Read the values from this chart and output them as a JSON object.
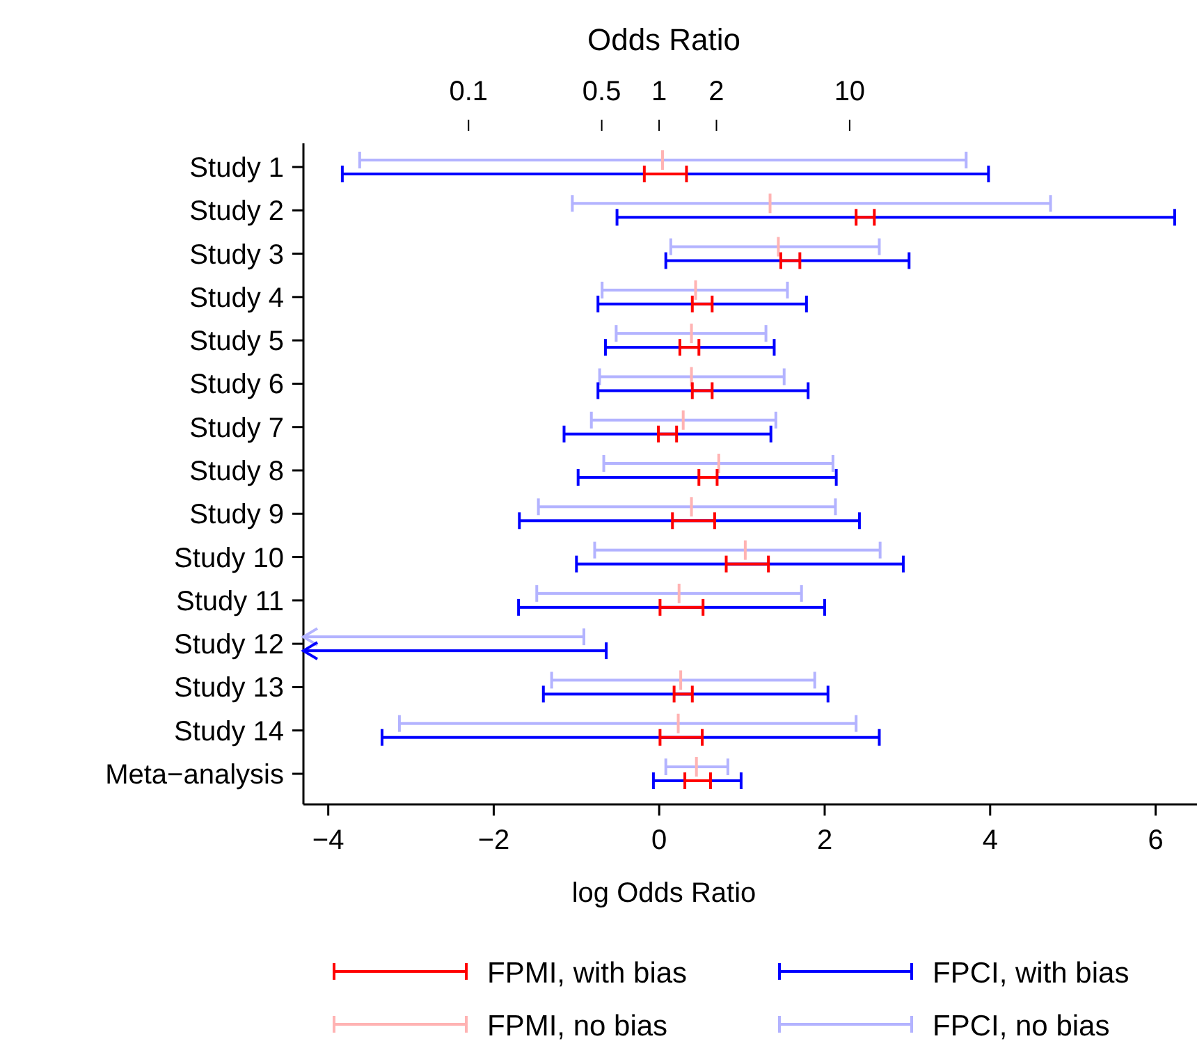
{
  "chart_data": {
    "type": "bar",
    "orientation": "horizontal",
    "xlabel": "log Odds Ratio",
    "x2label": "Odds Ratio",
    "categories": [
      "Study 1",
      "Study 2",
      "Study 3",
      "Study 4",
      "Study 5",
      "Study 6",
      "Study 7",
      "Study 8",
      "Study 9",
      "Study 10",
      "Study 11",
      "Study 12",
      "Study 13",
      "Study 14",
      "Meta−analysis"
    ],
    "series": [
      {
        "name": "FPMI, with bias",
        "color": "#ff0000",
        "base": [
          -0.18,
          2.38,
          1.47,
          0.4,
          0.25,
          0.4,
          -0.01,
          0.48,
          0.16,
          0.81,
          0.01,
          null,
          0.18,
          0.01,
          0.31
        ],
        "values": [
          0.51,
          0.22,
          0.23,
          0.24,
          0.23,
          0.24,
          0.22,
          0.22,
          0.51,
          0.51,
          0.52,
          null,
          0.22,
          0.51,
          0.31
        ]
      },
      {
        "name": "FPCI, with bias",
        "color": "#0000ff",
        "base": [
          -3.83,
          -0.51,
          0.08,
          -0.74,
          -0.65,
          -0.74,
          -1.15,
          -0.98,
          -1.69,
          -1.0,
          -1.7,
          -4.3,
          -1.4,
          -3.35,
          -0.07
        ],
        "values": [
          7.81,
          6.74,
          2.94,
          2.52,
          2.04,
          2.54,
          2.5,
          3.12,
          4.11,
          3.95,
          3.7,
          3.66,
          3.44,
          6.01,
          1.06
        ]
      },
      {
        "name": "FPMI, no bias",
        "color": "#ffb3b3",
        "base": [
          0.04,
          1.34,
          1.44,
          0.44,
          0.39,
          0.39,
          0.29,
          0.72,
          0.39,
          1.04,
          0.24,
          null,
          0.26,
          0.23,
          0.45
        ],
        "values": [
          0,
          0,
          0,
          0,
          0,
          0,
          0,
          0,
          0,
          0,
          0,
          null,
          0,
          0,
          0
        ]
      },
      {
        "name": "FPCI, no bias",
        "color": "#b3b3ff",
        "base": [
          -3.62,
          -1.05,
          0.14,
          -0.69,
          -0.52,
          -0.72,
          -0.82,
          -0.67,
          -1.46,
          -0.78,
          -1.48,
          -4.3,
          -1.3,
          -3.14,
          0.08
        ],
        "values": [
          7.33,
          5.78,
          2.52,
          2.24,
          1.81,
          2.23,
          2.23,
          2.77,
          3.59,
          3.45,
          3.2,
          3.39,
          3.18,
          5.52,
          0.75
        ]
      }
    ],
    "xlim": [
      -4.3,
      6.5
    ],
    "xticks": [
      -4,
      -2,
      0,
      2,
      4,
      6
    ],
    "x2lim": [
      0.0136,
      665
    ],
    "x2ticks": [
      0.1,
      0.5,
      1,
      2,
      10
    ],
    "log": "x2",
    "legend": "bottom"
  }
}
